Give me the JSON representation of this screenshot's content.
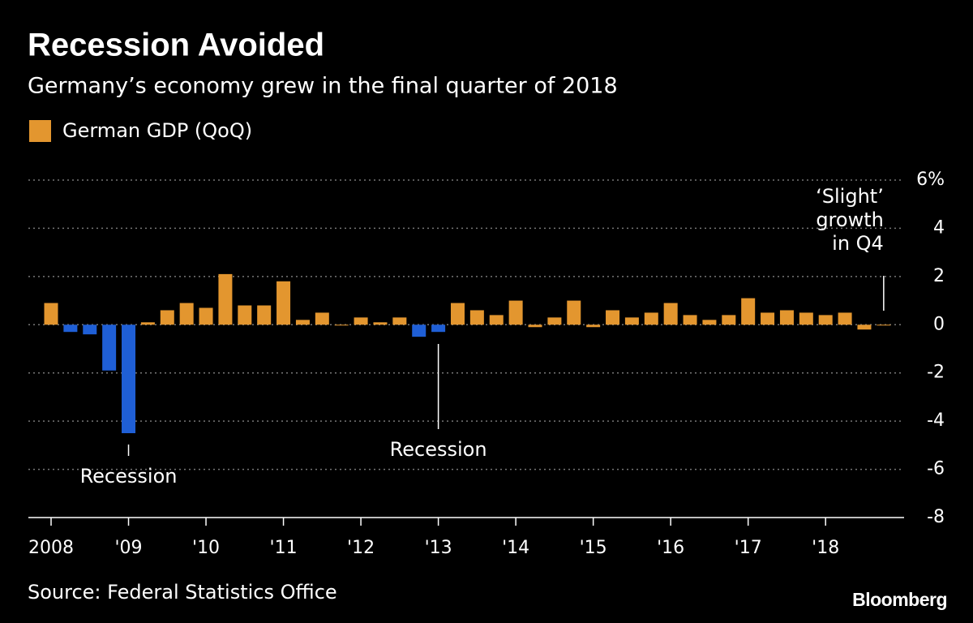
{
  "chart_data": {
    "type": "bar",
    "title": "Recession Avoided",
    "subtitle": "Germany’s economy grew in the final quarter of 2018",
    "source": "Source: Federal Statistics Office",
    "brand": "Bloomberg",
    "series": [
      {
        "name": "German GDP (QoQ)",
        "color": "#e3962f",
        "values": [
          0.9,
          -0.3,
          -0.4,
          -1.9,
          -4.5,
          0.1,
          0.6,
          0.9,
          0.7,
          2.1,
          0.8,
          0.8,
          1.8,
          0.2,
          0.5,
          0.0,
          0.3,
          0.1,
          0.3,
          -0.5,
          -0.3,
          0.9,
          0.6,
          0.4,
          1.0,
          -0.1,
          0.3,
          1.0,
          -0.1,
          0.6,
          0.3,
          0.5,
          0.9,
          0.4,
          0.2,
          0.4,
          1.1,
          0.5,
          0.6,
          0.5,
          0.4,
          0.5,
          -0.2,
          0.0
        ],
        "colors": [
          "#e3962f",
          "#1f5fd6",
          "#1f5fd6",
          "#1f5fd6",
          "#1f5fd6",
          "#e3962f",
          "#e3962f",
          "#e3962f",
          "#e3962f",
          "#e3962f",
          "#e3962f",
          "#e3962f",
          "#e3962f",
          "#e3962f",
          "#e3962f",
          "#e3962f",
          "#e3962f",
          "#e3962f",
          "#e3962f",
          "#1f5fd6",
          "#1f5fd6",
          "#e3962f",
          "#e3962f",
          "#e3962f",
          "#e3962f",
          "#e3962f",
          "#e3962f",
          "#e3962f",
          "#e3962f",
          "#e3962f",
          "#e3962f",
          "#e3962f",
          "#e3962f",
          "#e3962f",
          "#e3962f",
          "#e3962f",
          "#e3962f",
          "#e3962f",
          "#e3962f",
          "#e3962f",
          "#e3962f",
          "#e3962f",
          "#e3962f",
          "#e3962f"
        ]
      }
    ],
    "categories": [
      "2008",
      null,
      null,
      null,
      "'09",
      null,
      null,
      null,
      "'10",
      null,
      null,
      null,
      "'11",
      null,
      null,
      null,
      "'12",
      null,
      null,
      null,
      "'13",
      null,
      null,
      null,
      "'14",
      null,
      null,
      null,
      "'15",
      null,
      null,
      null,
      "'16",
      null,
      null,
      null,
      "'17",
      null,
      null,
      null,
      "'18",
      null,
      null,
      null
    ],
    "ylim": [
      -8,
      6
    ],
    "yticks": [
      -8,
      -6,
      -4,
      -2,
      0,
      2,
      4,
      {
        "value": 6,
        "label": "6%"
      }
    ],
    "grid": true,
    "annotations": [
      {
        "text": [
          "Recession"
        ]
      },
      {
        "text": [
          "Recession"
        ]
      },
      {
        "text": [
          "‘Slight’",
          "growth",
          "in Q4"
        ]
      }
    ]
  }
}
